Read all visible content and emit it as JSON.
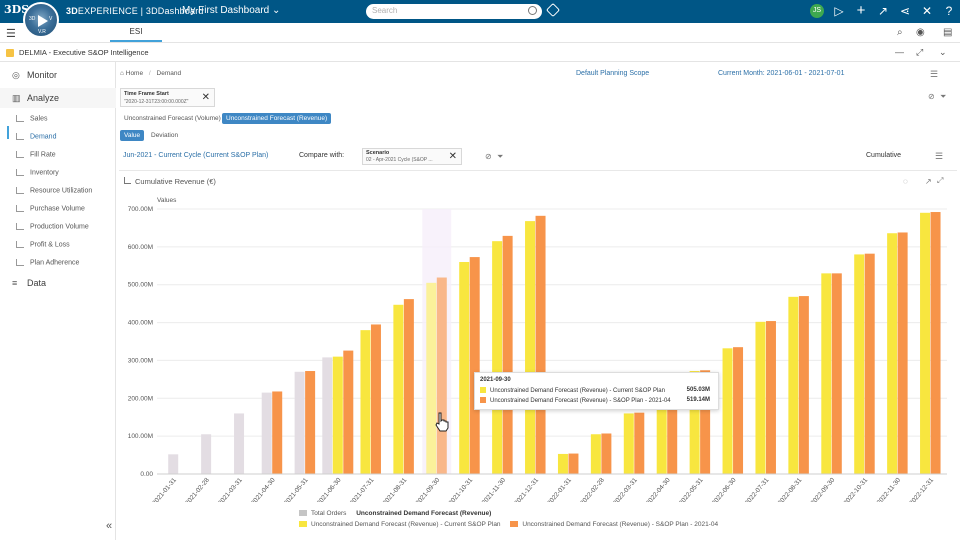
{
  "topbar": {
    "logo_text": "3DS",
    "compass_3d": "3D",
    "compass_v": "V",
    "compass_vr": "V.R",
    "brand_bold": "3D",
    "brand_rest": "EXPERIENCE | 3DDashboard",
    "dashboard_title": "My First Dashboard ⌄",
    "search_placeholder": "Search",
    "avatar_initial": "JS"
  },
  "tabs": {
    "active": "ESI"
  },
  "widget": {
    "title": "DELMIA - Executive S&OP Intelligence"
  },
  "sidebar": {
    "monitor": "Monitor",
    "analyze": "Analyze",
    "data": "Data",
    "items": [
      {
        "label": "Sales"
      },
      {
        "label": "Demand"
      },
      {
        "label": "Fill Rate"
      },
      {
        "label": "Inventory"
      },
      {
        "label": "Resource Utilization"
      },
      {
        "label": "Purchase Volume"
      },
      {
        "label": "Production Volume"
      },
      {
        "label": "Profit & Loss"
      },
      {
        "label": "Plan Adherence"
      }
    ]
  },
  "header": {
    "home": "Home",
    "separator": "/",
    "page": "Demand",
    "scope": "Default Planning Scope",
    "current_month": "Current Month: 2021-06-01 - 2021-07-01"
  },
  "filter": {
    "label": "Time Frame Start",
    "value": "\"2020-12-31T23:00:00.000Z\""
  },
  "subtabs": {
    "volume": "Unconstrained Forecast (Volume)",
    "revenue": "Unconstrained Forecast (Revenue)",
    "value": "Value",
    "deviation": "Deviation"
  },
  "controls": {
    "cycle": "Jun-2021 - Current Cycle (Current S&OP Plan)",
    "compare_with": "Compare with:",
    "scenario_label": "Scenario",
    "scenario_value": "02 - Apr-2021 Cycle (S&OP ...",
    "cumulative": "Cumulative"
  },
  "chart_title": "Cumulative Revenue (€)",
  "colors": {
    "topbar": "#005686",
    "total_orders": "#e3dde3",
    "current": "#f8e63f",
    "scenario": "#f7944a",
    "accent": "#3e87c4"
  },
  "tooltip": {
    "date": "2021-09-30",
    "row1_label": "Unconstrained Demand Forecast (Revenue) - Current S&OP Plan",
    "row1_value": "505.03M",
    "row2_label": "Unconstrained Demand Forecast (Revenue) - S&OP Plan - 2021-04",
    "row2_value": "519.14M"
  },
  "legend": {
    "total_orders": "Total Orders",
    "group_title": "Unconstrained Demand Forecast (Revenue)",
    "current": "Unconstrained Demand Forecast (Revenue) - Current S&OP Plan",
    "scenario": "Unconstrained Demand Forecast (Revenue) - S&OP Plan - 2021-04"
  },
  "chart_data": {
    "type": "bar",
    "ylabel": "Values",
    "ylim": [
      0,
      700
    ],
    "y_ticks": [
      "0.00",
      "100.00M",
      "200.00M",
      "300.00M",
      "400.00M",
      "500.00M",
      "600.00M",
      "700.00M"
    ],
    "y_tick_values": [
      0,
      100,
      200,
      300,
      400,
      500,
      600,
      700
    ],
    "categories": [
      "2021-01-31",
      "2021-02-28",
      "2021-03-31",
      "2021-04-30",
      "2021-05-31",
      "2021-06-30",
      "2021-07-31",
      "2021-08-31",
      "2021-09-30",
      "2021-10-31",
      "2021-11-30",
      "2021-12-31",
      "2022-01-31",
      "2022-02-28",
      "2022-03-31",
      "2022-04-30",
      "2022-05-31",
      "2022-06-30",
      "2022-07-31",
      "2022-08-31",
      "2022-09-30",
      "2022-10-31",
      "2022-11-30",
      "2022-12-31"
    ],
    "series": [
      {
        "name": "Total Orders",
        "values": [
          52,
          105,
          160,
          215,
          270,
          308,
          null,
          null,
          null,
          null,
          null,
          null,
          null,
          null,
          null,
          null,
          null,
          null,
          null,
          null,
          null,
          null,
          null,
          null
        ]
      },
      {
        "name": "Unconstrained Demand Forecast (Revenue) - Current S&OP Plan",
        "values": [
          null,
          null,
          null,
          null,
          null,
          310,
          380,
          447,
          505,
          560,
          615,
          668,
          53,
          105,
          160,
          216,
          272,
          332,
          402,
          468,
          530,
          580,
          636,
          690
        ]
      },
      {
        "name": "Unconstrained Demand Forecast (Revenue) - S&OP Plan - 2021-04",
        "values": [
          null,
          null,
          null,
          218,
          272,
          326,
          395,
          462,
          519,
          573,
          629,
          682,
          54,
          107,
          162,
          218,
          274,
          335,
          404,
          470,
          530,
          582,
          638,
          692
        ]
      }
    ]
  }
}
